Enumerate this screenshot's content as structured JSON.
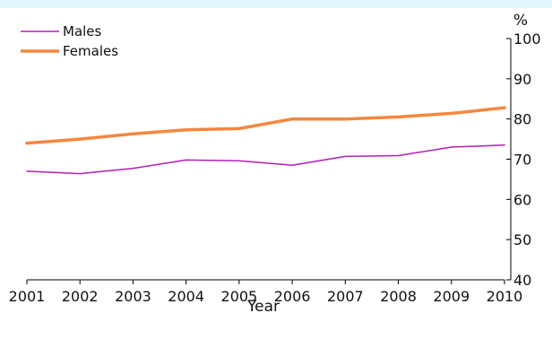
{
  "chart_data": {
    "type": "line",
    "x": [
      2001,
      2002,
      2003,
      2004,
      2005,
      2006,
      2007,
      2008,
      2009,
      2010
    ],
    "xlabel": "Year",
    "ylabel": "%",
    "ylim": [
      40,
      100
    ],
    "yticks": [
      40,
      50,
      60,
      70,
      80,
      90,
      100
    ],
    "y_axis_side": "right",
    "legend_position": "top-left",
    "grid": false,
    "series": [
      {
        "name": "Males",
        "color": "#b31fb8",
        "values": [
          67.0,
          66.4,
          67.7,
          69.8,
          69.6,
          68.5,
          70.7,
          70.9,
          73.0,
          73.5
        ]
      },
      {
        "name": "Females",
        "color": "#f5863f",
        "values": [
          74.0,
          75.0,
          76.3,
          77.3,
          77.6,
          80.0,
          80.0,
          80.5,
          81.4,
          82.8
        ]
      }
    ]
  }
}
